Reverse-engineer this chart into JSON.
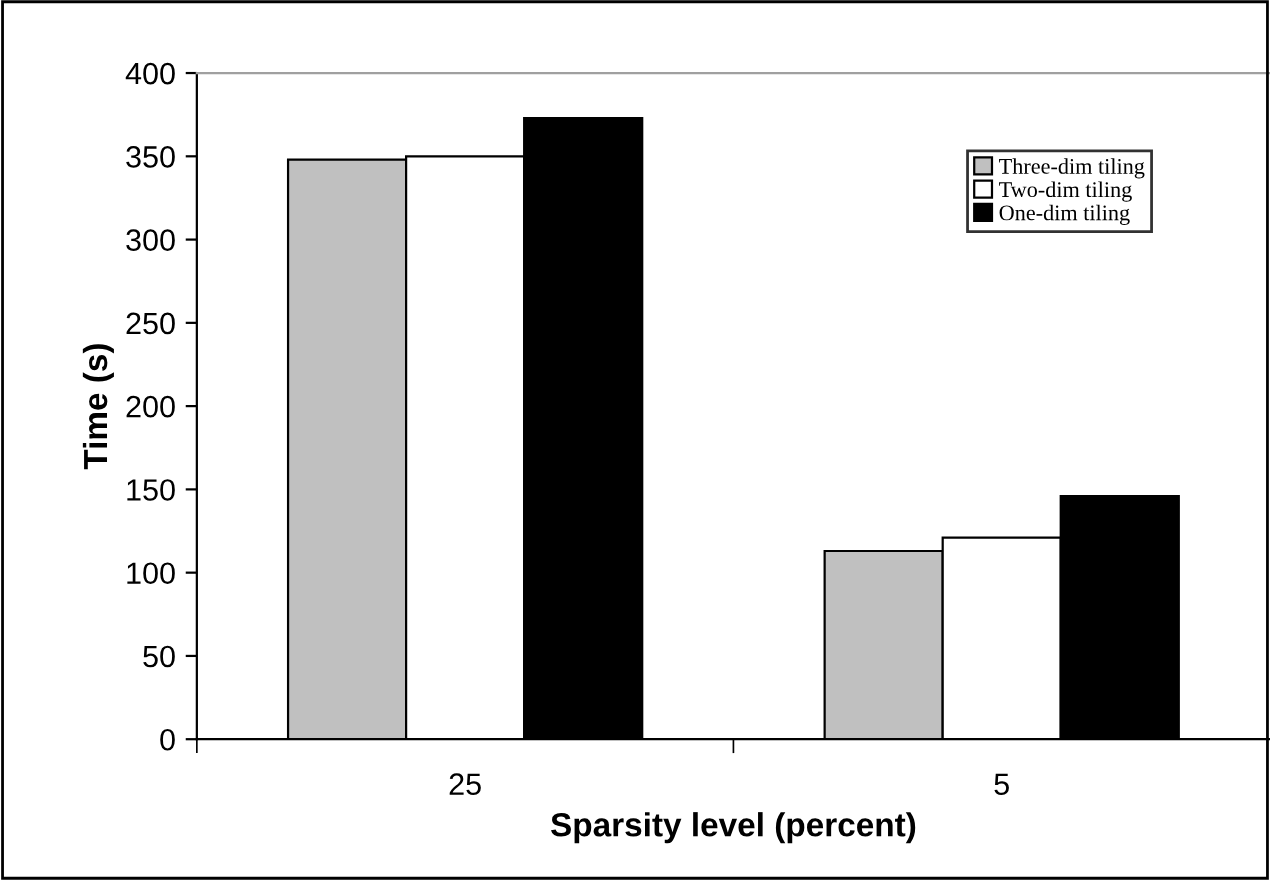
{
  "chart_data": {
    "type": "bar",
    "xlabel": "Sparsity level (percent)",
    "ylabel": "Time (s)",
    "categories": [
      "25",
      "5"
    ],
    "series": [
      {
        "name": "Three-dim tiling",
        "color": "#c0c0c0",
        "values": [
          348,
          113
        ]
      },
      {
        "name": "Two-dim tiling",
        "color": "#ffffff",
        "values": [
          350,
          121
        ]
      },
      {
        "name": "One-dim tiling",
        "color": "#000000",
        "values": [
          373,
          146
        ]
      }
    ],
    "ylim": [
      0,
      400
    ],
    "yticks": [
      0,
      50,
      100,
      150,
      200,
      250,
      300,
      350,
      400
    ],
    "grid": false,
    "legend": "top right"
  }
}
